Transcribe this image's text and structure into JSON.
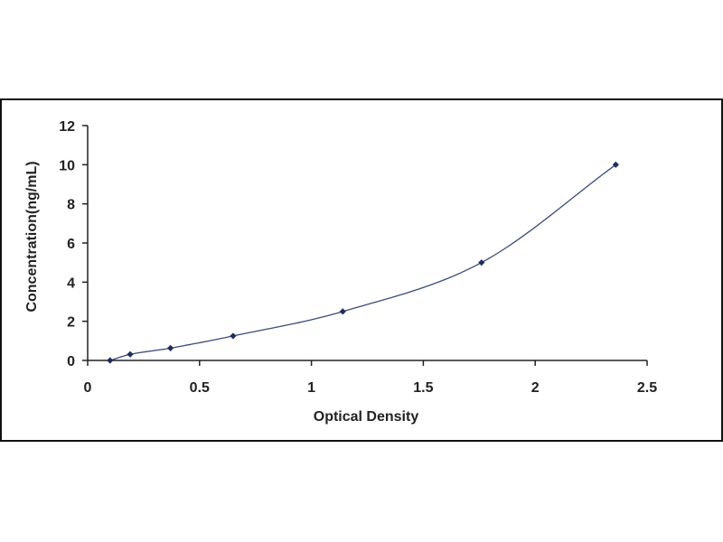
{
  "chart_data": {
    "type": "scatter",
    "title": "",
    "xlabel": "Optical Density",
    "ylabel": "Concentration(ng/mL)",
    "xlim": [
      0,
      2.5
    ],
    "ylim": [
      0,
      12
    ],
    "x_ticks": [
      "0",
      "0.5",
      "1",
      "1.5",
      "2",
      "2.5"
    ],
    "y_ticks": [
      "0",
      "2",
      "4",
      "6",
      "8",
      "10",
      "12"
    ],
    "grid": false,
    "legend": "none",
    "series": [
      {
        "points": [
          {
            "x": 0.1,
            "y": 0.0
          },
          {
            "x": 0.19,
            "y": 0.31
          },
          {
            "x": 0.37,
            "y": 0.63
          },
          {
            "x": 0.65,
            "y": 1.25
          },
          {
            "x": 1.14,
            "y": 2.5
          },
          {
            "x": 1.76,
            "y": 5.0
          },
          {
            "x": 2.36,
            "y": 10.0
          }
        ],
        "fit": "curve"
      }
    ],
    "colors": {
      "marker": "#1f2d5c",
      "curve": "#3b4a7a",
      "axis": "#222222",
      "frame": "#111111"
    }
  }
}
